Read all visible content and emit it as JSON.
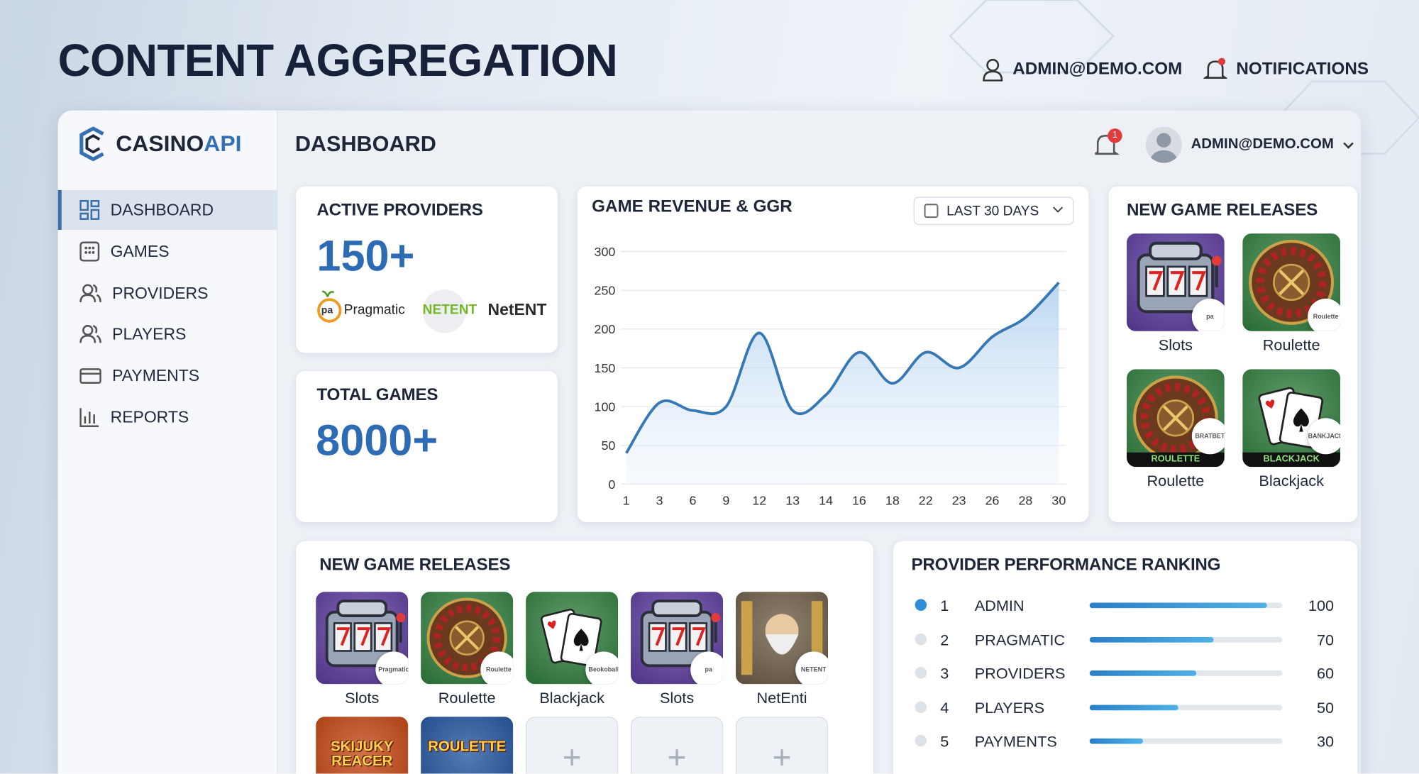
{
  "header": {
    "title": "CONTENT AGGREGATION",
    "user": "ADMIN@DEMO.COM",
    "notifications": "NOTIFICATIONS"
  },
  "sidebar": {
    "brand_main": "CASINO",
    "brand_accent": "API",
    "nav": [
      "DASHBOARD",
      "GAMES",
      "PROVIDERS",
      "PLAYERS",
      "PAYMENTS",
      "REPORTS"
    ]
  },
  "topbar": {
    "title": "DASHBOARD",
    "badge": "1",
    "user": "ADMIN@DEMO.COM"
  },
  "active_providers": {
    "title": "ACTIVE PROVIDERS",
    "value": "150+",
    "logos": [
      "Pragmatic",
      "NETENT",
      "NetENT"
    ]
  },
  "total_games": {
    "title": "TOTAL GAMES",
    "value": "8000+"
  },
  "chart_data": {
    "type": "line",
    "title": "GAME REVENUE & GGR",
    "filter": "LAST 30 DAYS",
    "categories": [
      "1",
      "3",
      "6",
      "9",
      "12",
      "13",
      "14",
      "16",
      "18",
      "22",
      "23",
      "26",
      "28",
      "30"
    ],
    "values": [
      40,
      105,
      95,
      100,
      195,
      95,
      115,
      170,
      130,
      170,
      150,
      190,
      215,
      260
    ],
    "color": "#3578b5",
    "area": true,
    "ylim": [
      0,
      300
    ],
    "yticks": [
      0,
      50,
      100,
      150,
      200,
      250,
      300
    ],
    "grid": true
  },
  "new_releases_side": {
    "title": "NEW GAME RELEASES",
    "games": [
      {
        "name": "Slots",
        "badge": "pa",
        "color": "#5b3a9e"
      },
      {
        "name": "Roulette",
        "badge": "Roulette",
        "color": "#2e7d3c"
      },
      {
        "name": "Roulette",
        "badge": "BRATBET",
        "banner": "ROULETTE",
        "color": "#2e7d3c"
      },
      {
        "name": "Blackjack",
        "badge": "BANKJACK",
        "banner": "BLACKJACK",
        "color": "#2e7d3c"
      }
    ]
  },
  "new_releases": {
    "title": "NEW GAME RELEASES",
    "games": [
      {
        "name": "Slots",
        "badge": "Pragmatic",
        "color": "#5b3a9e"
      },
      {
        "name": "Roulette",
        "badge": "Roulette",
        "color": "#2e7d3c"
      },
      {
        "name": "Blackjack",
        "badge": "Beokoball",
        "color": "#2e7d3c"
      },
      {
        "name": "Slots",
        "badge": "pa",
        "color": "#5b3a9e"
      },
      {
        "name": "NetEnti",
        "badge": "NETENT",
        "color": "#6b5a44"
      },
      {
        "art_text": "SKIJUKY REACER",
        "color": "#c2410c"
      },
      {
        "art_text": "ROULETTE",
        "color": "#1d4f9c"
      }
    ],
    "placeholders": [
      "+",
      "+",
      "+"
    ]
  },
  "ranking": {
    "title": "PROVIDER PERFORMANCE RANKING",
    "max": 100,
    "rows": [
      {
        "rank": "1",
        "name": "ADMIN",
        "value": 100
      },
      {
        "rank": "2",
        "name": "PRAGMATIC",
        "value": 70
      },
      {
        "rank": "3",
        "name": "PROVIDERS",
        "value": 60
      },
      {
        "rank": "4",
        "name": "PLAYERS",
        "value": 50
      },
      {
        "rank": "5",
        "name": "PAYMENTS",
        "value": 30
      }
    ]
  }
}
